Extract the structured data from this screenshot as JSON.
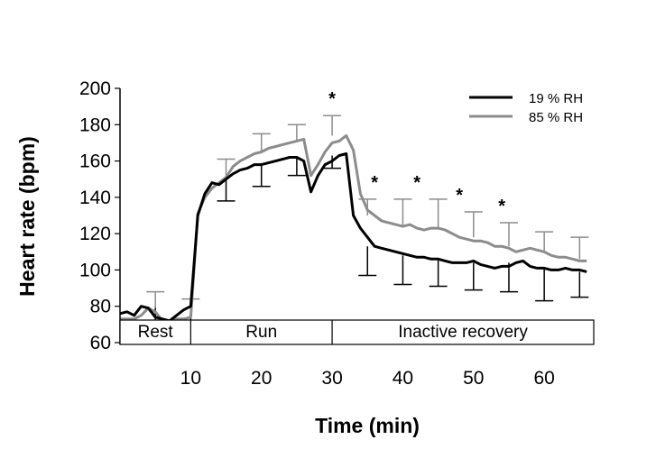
{
  "chart_data": {
    "type": "line",
    "xlabel": "Time (min)",
    "ylabel": "Heart rate (bpm)",
    "xlim": [
      0,
      67
    ],
    "ylim": [
      60,
      200
    ],
    "xticks": [
      10,
      20,
      30,
      40,
      50,
      60
    ],
    "yticks": [
      60,
      80,
      100,
      120,
      140,
      160,
      180,
      200
    ],
    "legend_position": "top-right",
    "series": [
      {
        "name": "19 % RH",
        "color": "#000000",
        "x": [
          0,
          1,
          2,
          3,
          4,
          5,
          6,
          7,
          8,
          9,
          10,
          11,
          12,
          13,
          14,
          15,
          16,
          17,
          18,
          19,
          20,
          21,
          22,
          23,
          24,
          25,
          26,
          27,
          28,
          29,
          30,
          31,
          32,
          33,
          34,
          35,
          36,
          37,
          38,
          39,
          40,
          41,
          42,
          43,
          44,
          45,
          46,
          47,
          48,
          49,
          50,
          51,
          52,
          53,
          54,
          55,
          56,
          57,
          58,
          59,
          60,
          61,
          62,
          63,
          64,
          65,
          66
        ],
        "y": [
          76,
          77,
          75,
          80,
          79,
          74,
          73,
          72,
          75,
          78,
          80,
          130,
          142,
          148,
          147,
          150,
          153,
          155,
          156,
          158,
          158,
          159,
          160,
          161,
          162,
          162,
          160,
          143,
          152,
          158,
          160,
          163,
          164,
          130,
          123,
          118,
          113,
          112,
          111,
          110,
          109,
          108,
          107,
          107,
          106,
          106,
          105,
          104,
          104,
          104,
          105,
          103,
          102,
          101,
          102,
          102,
          104,
          105,
          102,
          101,
          101,
          100,
          100,
          101,
          100,
          100,
          99
        ]
      },
      {
        "name": "85 % RH",
        "color": "#8c8c8c",
        "x": [
          0,
          1,
          2,
          3,
          4,
          5,
          6,
          7,
          8,
          9,
          10,
          11,
          12,
          13,
          14,
          15,
          16,
          17,
          18,
          19,
          20,
          21,
          22,
          23,
          24,
          25,
          26,
          27,
          28,
          29,
          30,
          31,
          32,
          33,
          34,
          35,
          36,
          37,
          38,
          39,
          40,
          41,
          42,
          43,
          44,
          45,
          46,
          47,
          48,
          49,
          50,
          51,
          52,
          53,
          54,
          55,
          56,
          57,
          58,
          59,
          60,
          61,
          62,
          63,
          64,
          65,
          66
        ],
        "y": [
          73,
          73,
          73,
          75,
          79,
          77,
          72,
          72,
          73,
          73,
          74,
          131,
          140,
          145,
          148,
          151,
          157,
          160,
          162,
          164,
          165,
          167,
          168,
          169,
          170,
          171,
          172,
          152,
          158,
          165,
          170,
          171,
          174,
          166,
          142,
          133,
          130,
          127,
          126,
          125,
          124,
          125,
          123,
          122,
          123,
          123,
          122,
          120,
          118,
          117,
          116,
          116,
          115,
          113,
          113,
          112,
          110,
          111,
          112,
          111,
          110,
          108,
          107,
          107,
          106,
          105,
          105
        ]
      }
    ],
    "error_bars": [
      {
        "series": "19 % RH",
        "x": [
          5,
          10,
          15,
          20,
          25,
          30,
          35,
          40,
          45,
          50,
          55,
          60,
          65
        ],
        "mean": [
          80,
          80,
          150,
          158,
          162,
          163,
          113,
          108,
          106,
          104,
          104,
          101,
          99
        ],
        "lower": [
          72,
          72,
          138,
          146,
          152,
          156,
          97,
          92,
          91,
          89,
          88,
          83,
          85
        ]
      },
      {
        "series": "85 % RH",
        "x": [
          5,
          10,
          15,
          20,
          25,
          30,
          35,
          40,
          45,
          50,
          55,
          60,
          65
        ],
        "mean": [
          79,
          74,
          151,
          165,
          171,
          174,
          130,
          124,
          123,
          118,
          113,
          110,
          106
        ],
        "upper": [
          88,
          84,
          161,
          175,
          180,
          185,
          139,
          139,
          139,
          132,
          126,
          121,
          118
        ]
      }
    ],
    "significance_markers": [
      {
        "x": 30,
        "label": "*"
      },
      {
        "x": 36,
        "label": "*"
      },
      {
        "x": 42,
        "label": "*"
      },
      {
        "x": 48,
        "label": "*"
      },
      {
        "x": 54,
        "label": "*"
      }
    ],
    "phases": [
      {
        "label": "Rest",
        "start": 0,
        "end": 10
      },
      {
        "label": "Run",
        "start": 10,
        "end": 30
      },
      {
        "label": "Inactive recovery",
        "start": 30,
        "end": 67
      }
    ]
  }
}
